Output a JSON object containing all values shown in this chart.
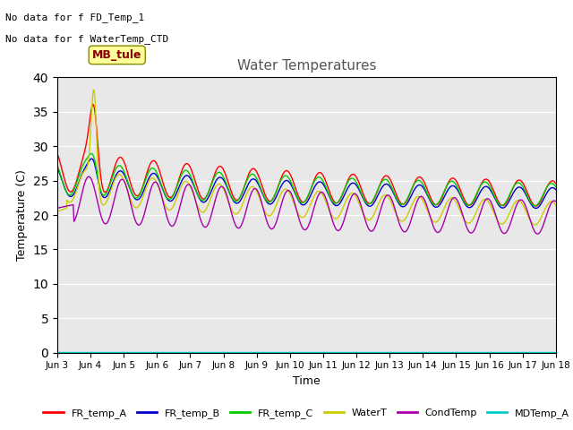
{
  "title": "Water Temperatures",
  "xlabel": "Time",
  "ylabel": "Temperature (C)",
  "ylim": [
    0,
    40
  ],
  "bg_color": "#e8e8e8",
  "fig_bg": "#ffffff",
  "annotations": [
    "No data for f FD_Temp_1",
    "No data for f WaterTemp_CTD"
  ],
  "mb_tule_label": "MB_tule",
  "xtick_labels": [
    "Jun 3",
    "Jun 4",
    "Jun 5",
    "Jun 6",
    "Jun 7",
    "Jun 8",
    "Jun 9",
    "Jun 10",
    "Jun 11",
    "Jun 12",
    "Jun 13",
    "Jun 14",
    "Jun 15",
    "Jun 16",
    "Jun 17",
    "Jun 18"
  ],
  "legend": [
    {
      "label": "FR_temp_A",
      "color": "#ff0000"
    },
    {
      "label": "FR_temp_B",
      "color": "#0000cc"
    },
    {
      "label": "FR_temp_C",
      "color": "#00cc00"
    },
    {
      "label": "WaterT",
      "color": "#cccc00"
    },
    {
      "label": "CondTemp",
      "color": "#aa00aa"
    },
    {
      "label": "MDTemp_A",
      "color": "#00cccc"
    }
  ]
}
